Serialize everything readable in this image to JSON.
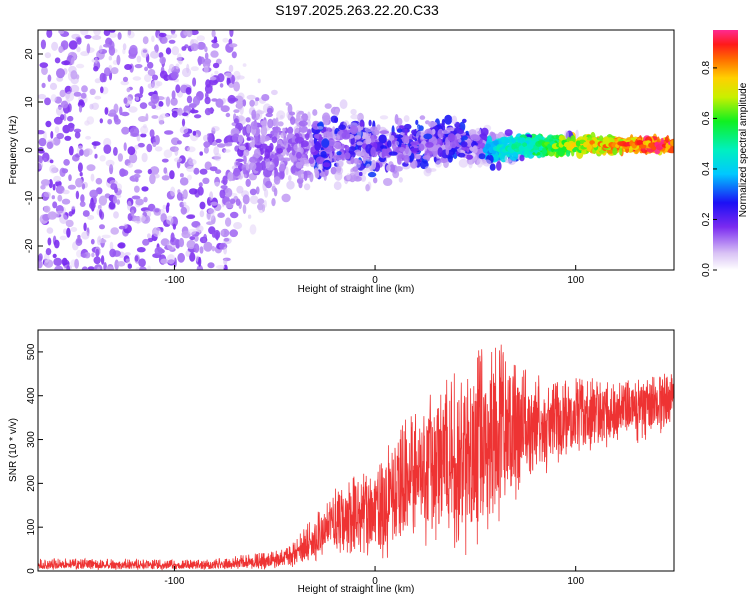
{
  "title": "S197.2025.263.22.20.C33",
  "colors": {
    "line": "#ee3333",
    "axis": "#000000",
    "heat_low": "#e6d2f7",
    "heat_mid": "#6a1ff0"
  },
  "chart_data": [
    {
      "type": "heatmap",
      "title": "S197.2025.263.22.20.C33",
      "xlabel": "Height of straight line (km)",
      "ylabel": "Frequency (Hz)",
      "xlim": [
        -168,
        149
      ],
      "ylim": [
        -25,
        25
      ],
      "xticks": [
        -100,
        0,
        100
      ],
      "xtick_labels": [
        "-100",
        "0",
        "100"
      ],
      "yticks": [
        -20,
        -10,
        0,
        10,
        20
      ],
      "ytick_labels": [
        "-20",
        "-10",
        "0",
        "10",
        "20"
      ],
      "grid": false,
      "colorbar": {
        "label": "Normalized spectral amplitude",
        "range": [
          0.0,
          0.95
        ],
        "ticks": [
          0.0,
          0.2,
          0.4,
          0.6,
          0.8
        ],
        "tick_labels": [
          "0.0",
          "0.2",
          "0.4",
          "0.6",
          "0.8"
        ],
        "colormap": "rainbow (white-purple-blue-cyan-green-yellow-orange-red-magenta)"
      },
      "ridge": {
        "description": "dominant frequency track",
        "x": [
          -40,
          -20,
          0,
          20,
          40,
          60,
          80,
          100,
          120,
          149
        ],
        "freq_hz": [
          0,
          1,
          0,
          1,
          2,
          0,
          1,
          1,
          1,
          1
        ],
        "amplitude": [
          0.08,
          0.12,
          0.15,
          0.18,
          0.3,
          0.45,
          0.55,
          0.75,
          0.85,
          0.95
        ]
      }
    },
    {
      "type": "line",
      "xlabel": "Height of straight line (km)",
      "ylabel": "SNR (10 * v/v)",
      "xlim": [
        -168,
        149
      ],
      "ylim": [
        0,
        550
      ],
      "xticks": [
        -100,
        0,
        100
      ],
      "xtick_labels": [
        "-100",
        "0",
        "100"
      ],
      "yticks": [
        0,
        100,
        200,
        300,
        400,
        500
      ],
      "ytick_labels": [
        "0",
        "100",
        "200",
        "300",
        "400",
        "500"
      ],
      "grid": false,
      "series": [
        {
          "name": "SNR",
          "x": [
            -168,
            -140,
            -120,
            -100,
            -80,
            -70,
            -60,
            -50,
            -40,
            -30,
            -25,
            -20,
            -10,
            0,
            10,
            20,
            30,
            40,
            50,
            60,
            70,
            80,
            90,
            100,
            110,
            120,
            130,
            140,
            149
          ],
          "min": [
            2,
            2,
            2,
            2,
            2,
            3,
            3,
            4,
            6,
            20,
            30,
            40,
            30,
            20,
            30,
            60,
            50,
            40,
            30,
            80,
            150,
            200,
            230,
            260,
            270,
            280,
            290,
            300,
            310
          ],
          "max": [
            30,
            28,
            28,
            25,
            28,
            35,
            40,
            45,
            70,
            130,
            160,
            210,
            220,
            230,
            320,
            370,
            420,
            460,
            500,
            540,
            470,
            450,
            440,
            440,
            440,
            430,
            440,
            450,
            470
          ],
          "mean": [
            12,
            12,
            12,
            11,
            12,
            15,
            18,
            22,
            30,
            70,
            90,
            110,
            120,
            130,
            170,
            220,
            240,
            260,
            280,
            310,
            320,
            320,
            330,
            340,
            350,
            360,
            370,
            380,
            390
          ]
        }
      ]
    }
  ]
}
